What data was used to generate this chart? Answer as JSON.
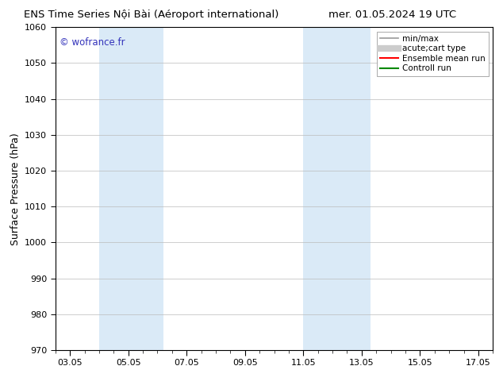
{
  "title_left": "ENS Time Series Nội Bài (Aéroport international)",
  "title_right": "mer. 01.05.2024 19 UTC",
  "ylabel": "Surface Pressure (hPa)",
  "ylim": [
    970,
    1060
  ],
  "yticks": [
    970,
    980,
    990,
    1000,
    1010,
    1020,
    1030,
    1040,
    1050,
    1060
  ],
  "xtick_labels": [
    "03.05",
    "05.05",
    "07.05",
    "09.05",
    "11.05",
    "13.05",
    "15.05",
    "17.05"
  ],
  "xtick_positions": [
    0,
    2,
    4,
    6,
    8,
    10,
    12,
    14
  ],
  "xlim": [
    -0.5,
    14.5
  ],
  "shaded_regions": [
    {
      "x_start": 1.0,
      "x_end": 3.2,
      "color": "#daeaf7"
    },
    {
      "x_start": 8.0,
      "x_end": 10.3,
      "color": "#daeaf7"
    }
  ],
  "watermark": "© wofrance.fr",
  "watermark_color": "#3333bb",
  "legend_entries": [
    {
      "label": "min/max",
      "color": "#999999",
      "lw": 1.2
    },
    {
      "label": "acute;cart type",
      "color": "#cccccc",
      "lw": 6
    },
    {
      "label": "Ensemble mean run",
      "color": "#ff0000",
      "lw": 1.5
    },
    {
      "label": "Controll run",
      "color": "#008800",
      "lw": 1.5
    }
  ],
  "bg_color": "#ffffff",
  "grid_color": "#bbbbbb",
  "title_fontsize": 9.5,
  "tick_fontsize": 8,
  "ylabel_fontsize": 9
}
